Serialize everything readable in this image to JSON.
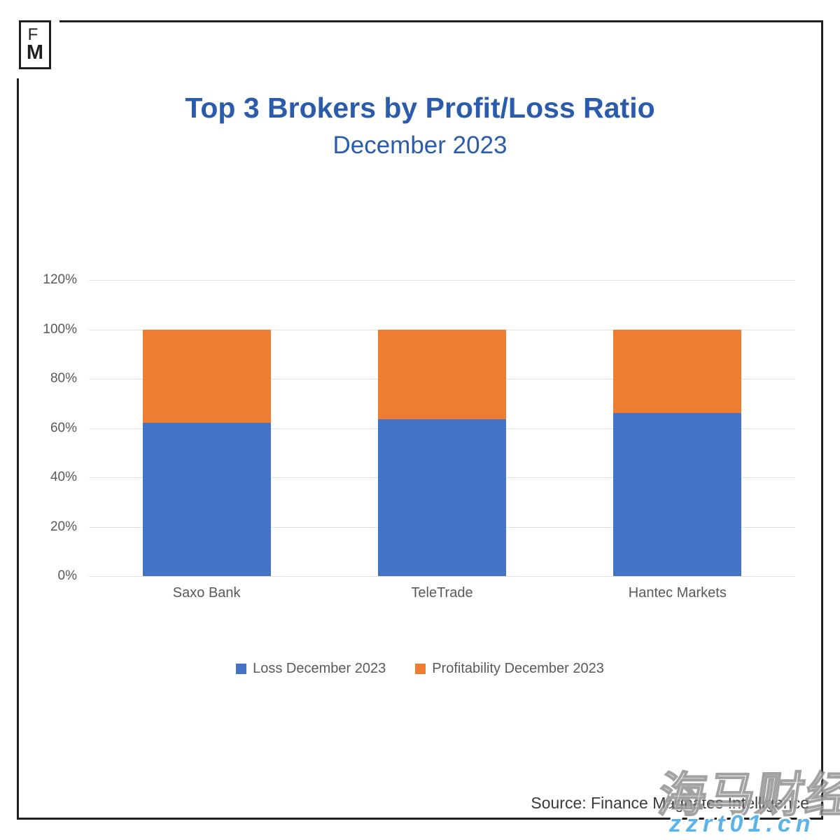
{
  "logo": {
    "line1": "F",
    "line2": "M"
  },
  "header": {
    "title": "Top 3 Brokers by Profit/Loss Ratio",
    "subtitle": "December 2023"
  },
  "chart_data": {
    "type": "bar",
    "stacked": true,
    "categories": [
      "Saxo Bank",
      "TeleTrade",
      "Hantec Markets"
    ],
    "series": [
      {
        "name": "Loss December 2023",
        "color": "#4472C4",
        "values": [
          62,
          63.5,
          66
        ]
      },
      {
        "name": "Profitability December 2023",
        "color": "#ED7D31",
        "values": [
          38,
          36.5,
          34
        ]
      }
    ],
    "title": "Top 3 Brokers by Profit/Loss Ratio",
    "subtitle": "December 2023",
    "xlabel": "",
    "ylabel": "",
    "ylim": [
      0,
      120
    ],
    "ytick_step": 20,
    "ytick_suffix": "%",
    "grid": true,
    "legend_position": "bottom"
  },
  "footer": {
    "source": "Source: Finance Magnates Intelligence"
  },
  "watermark": {
    "cn": "海马财经",
    "url": "zzrt01.cn"
  },
  "colors": {
    "bar_blue": "#4472C4",
    "bar_orange": "#ED7D31",
    "title_blue": "#2B5CAB",
    "axis_gray": "#595959",
    "gridline": "#E3E3E3",
    "frame_black": "#1F1F1F",
    "watermark_blue": "#5CB3E8"
  }
}
